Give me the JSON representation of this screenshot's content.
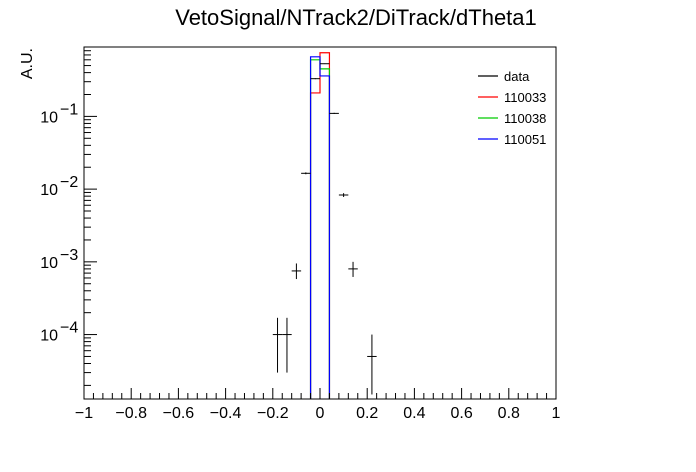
{
  "chart_data": {
    "type": "histogram",
    "title": "VetoSignal/NTrack2/DiTrack/dTheta1",
    "xlabel": "",
    "ylabel": "A.U.",
    "xlim": [
      -1,
      1
    ],
    "ylim": [
      1.3e-05,
      0.9
    ],
    "y_scale": "log",
    "grid": false,
    "legend_position": "top-right",
    "x_ticks": [
      {
        "value": -1,
        "label": "−1"
      },
      {
        "value": -0.8,
        "label": "−0.8"
      },
      {
        "value": -0.6,
        "label": "−0.6"
      },
      {
        "value": -0.4,
        "label": "−0.4"
      },
      {
        "value": -0.2,
        "label": "−0.2"
      },
      {
        "value": 0,
        "label": "0"
      },
      {
        "value": 0.2,
        "label": "0.2"
      },
      {
        "value": 0.4,
        "label": "0.4"
      },
      {
        "value": 0.6,
        "label": "0.6"
      },
      {
        "value": 0.8,
        "label": "0.8"
      },
      {
        "value": 1,
        "label": "1"
      }
    ],
    "y_ticks": [
      {
        "value": 0.0001,
        "base": "10",
        "exp": "−4"
      },
      {
        "value": 0.001,
        "base": "10",
        "exp": "−3"
      },
      {
        "value": 0.01,
        "base": "10",
        "exp": "−2"
      },
      {
        "value": 0.1,
        "base": "10",
        "exp": "−1"
      }
    ],
    "series": [
      {
        "name": "data",
        "style": "points",
        "color": "#000000",
        "points": [
          {
            "x": -0.18,
            "y": 0.0001,
            "ylo": 3e-05,
            "yhi": 0.00017
          },
          {
            "x": -0.14,
            "y": 0.0001,
            "ylo": 3e-05,
            "yhi": 0.00017
          },
          {
            "x": -0.1,
            "y": 0.00075,
            "ylo": 0.00058,
            "yhi": 0.00095
          },
          {
            "x": -0.06,
            "y": 0.0165,
            "ylo": 0.016,
            "yhi": 0.017
          },
          {
            "x": -0.02,
            "y": 0.33,
            "ylo": 0.325,
            "yhi": 0.335
          },
          {
            "x": 0.02,
            "y": 0.53,
            "ylo": 0.525,
            "yhi": 0.535
          },
          {
            "x": 0.06,
            "y": 0.11,
            "ylo": 0.108,
            "yhi": 0.112
          },
          {
            "x": 0.1,
            "y": 0.0083,
            "ylo": 0.0078,
            "yhi": 0.0088
          },
          {
            "x": 0.14,
            "y": 0.0008,
            "ylo": 0.00062,
            "yhi": 0.001
          },
          {
            "x": 0.22,
            "y": 5e-05,
            "ylo": 1.5e-05,
            "yhi": 0.0001
          }
        ]
      },
      {
        "name": "110033",
        "style": "step",
        "color": "#ff0000",
        "bins": [
          {
            "x0": -0.04,
            "x1": 0.0,
            "y": 0.21
          },
          {
            "x0": 0.0,
            "x1": 0.04,
            "y": 0.75
          }
        ]
      },
      {
        "name": "110038",
        "style": "step",
        "color": "#00cc00",
        "bins": [
          {
            "x0": -0.04,
            "x1": 0.0,
            "y": 0.6
          },
          {
            "x0": 0.0,
            "x1": 0.04,
            "y": 0.45
          }
        ]
      },
      {
        "name": "110051",
        "style": "step",
        "color": "#0000ff",
        "bins": [
          {
            "x0": -0.04,
            "x1": 0.0,
            "y": 0.66
          },
          {
            "x0": 0.0,
            "x1": 0.04,
            "y": 0.36
          }
        ]
      }
    ]
  }
}
